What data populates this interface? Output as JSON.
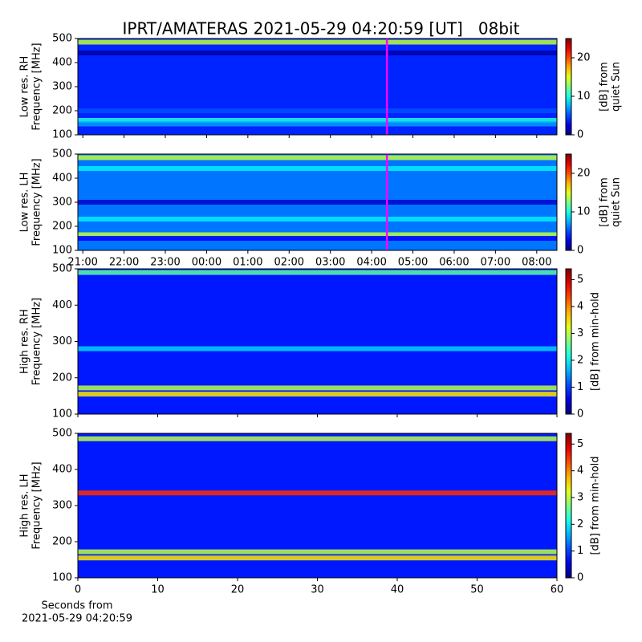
{
  "title": "IPRT/AMATERAS 2021-05-29 04:20:59 [UT]   08bit",
  "chart_data": [
    {
      "type": "spectrogram",
      "colormap": "jet",
      "ylabel": [
        "Low res. RH",
        "Frequency [MHz]"
      ],
      "ylim": [
        100,
        500
      ],
      "yticks": [
        100,
        200,
        300,
        400,
        500
      ],
      "xlim": [
        20.88,
        32.49
      ],
      "xticks": [
        {
          "value": 21,
          "label": "21:00"
        },
        {
          "value": 22,
          "label": "22:00"
        },
        {
          "value": 23,
          "label": "23:00"
        },
        {
          "value": 24,
          "label": "00:00"
        },
        {
          "value": 25,
          "label": "01:00"
        },
        {
          "value": 26,
          "label": "02:00"
        },
        {
          "value": 27,
          "label": "03:00"
        },
        {
          "value": 28,
          "label": "04:00"
        },
        {
          "value": 29,
          "label": "05:00"
        },
        {
          "value": 30,
          "label": "06:00"
        },
        {
          "value": 31,
          "label": "07:00"
        },
        {
          "value": 32,
          "label": "08:00"
        }
      ],
      "show_xtick_labels": false,
      "clim": [
        0,
        25
      ],
      "cticks": [
        0,
        10,
        20
      ],
      "clabel": [
        "[dB] from",
        "quiet Sun"
      ],
      "background": 4,
      "bands": [
        {
          "freq": 485,
          "level": 14
        },
        {
          "freq": 440,
          "level": 1
        },
        {
          "freq": 200,
          "level": 5
        },
        {
          "freq": 160,
          "level": 10
        },
        {
          "freq": 145,
          "level": 7
        }
      ],
      "marker": {
        "x": 28.37,
        "color": "#ff00ff"
      }
    },
    {
      "type": "spectrogram",
      "colormap": "jet",
      "ylabel": [
        "Low res. LH",
        "Frequency [MHz]"
      ],
      "ylim": [
        100,
        500
      ],
      "yticks": [
        100,
        200,
        300,
        400,
        500
      ],
      "xlim": [
        20.88,
        32.49
      ],
      "xticks": [
        {
          "value": 21,
          "label": "21:00"
        },
        {
          "value": 22,
          "label": "22:00"
        },
        {
          "value": 23,
          "label": "23:00"
        },
        {
          "value": 24,
          "label": "00:00"
        },
        {
          "value": 25,
          "label": "01:00"
        },
        {
          "value": 26,
          "label": "02:00"
        },
        {
          "value": 27,
          "label": "03:00"
        },
        {
          "value": 28,
          "label": "04:00"
        },
        {
          "value": 29,
          "label": "05:00"
        },
        {
          "value": 30,
          "label": "06:00"
        },
        {
          "value": 31,
          "label": "07:00"
        },
        {
          "value": 32,
          "label": "08:00"
        }
      ],
      "show_xtick_labels": true,
      "clim": [
        0,
        25
      ],
      "cticks": [
        0,
        10,
        20
      ],
      "clabel": [
        "[dB] from",
        "quiet Sun"
      ],
      "background": 6,
      "bands": [
        {
          "freq": 485,
          "level": 14
        },
        {
          "freq": 440,
          "level": 9
        },
        {
          "freq": 300,
          "level": 2
        },
        {
          "freq": 230,
          "level": 9
        },
        {
          "freq": 165,
          "level": 14
        },
        {
          "freq": 150,
          "level": 3
        }
      ],
      "marker": {
        "x": 28.37,
        "color": "#ff00ff"
      }
    },
    {
      "type": "spectrogram",
      "colormap": "jet",
      "ylabel": [
        "High res. RH",
        "Frequency [MHz]"
      ],
      "ylim": [
        100,
        500
      ],
      "yticks": [
        100,
        200,
        300,
        400,
        500
      ],
      "xlim": [
        0,
        60
      ],
      "xticks": [
        0,
        10,
        20,
        30,
        40,
        50,
        60
      ],
      "show_xtick_labels": false,
      "clim": [
        0,
        5.4
      ],
      "cticks": [
        0,
        1,
        2,
        3,
        4,
        5
      ],
      "clabel": [
        "[dB] from min-hold"
      ],
      "background": 0.8,
      "bands": [
        {
          "freq": 490,
          "level": 2.5
        },
        {
          "freq": 280,
          "level": 1.8
        },
        {
          "freq": 172,
          "level": 3
        },
        {
          "freq": 155,
          "level": 3.5
        }
      ]
    },
    {
      "type": "spectrogram",
      "colormap": "jet",
      "ylabel": [
        "High res. LH",
        "Frequency [MHz]"
      ],
      "ylim": [
        100,
        500
      ],
      "yticks": [
        100,
        200,
        300,
        400,
        500
      ],
      "xlim": [
        0,
        60
      ],
      "xticks": [
        0,
        10,
        20,
        30,
        40,
        50,
        60
      ],
      "show_xtick_labels": true,
      "xlabel": [
        "Seconds from",
        "2021-05-29 04:20:59"
      ],
      "clim": [
        0,
        5.4
      ],
      "cticks": [
        0,
        1,
        2,
        3,
        4,
        5
      ],
      "clabel": [
        "[dB] from min-hold"
      ],
      "background": 0.8,
      "bands": [
        {
          "freq": 485,
          "level": 3
        },
        {
          "freq": 335,
          "level": 4.5
        },
        {
          "freq": 172,
          "level": 3
        },
        {
          "freq": 155,
          "level": 3.5
        }
      ]
    }
  ]
}
